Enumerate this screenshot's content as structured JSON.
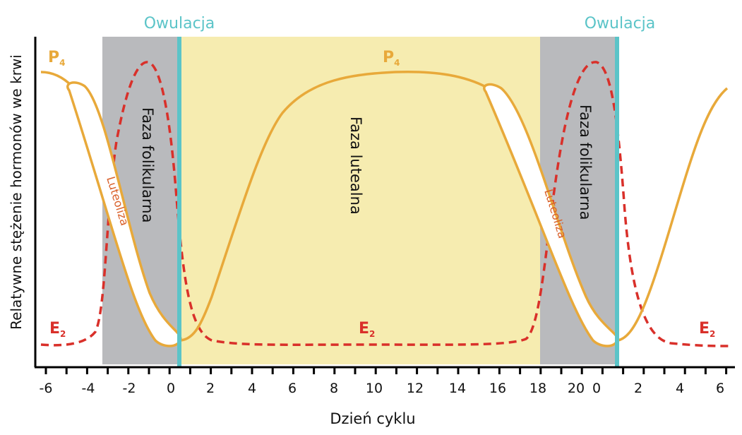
{
  "title_labels": {
    "ovulation_left": "Owulacja",
    "ovulation_right": "Owulacja"
  },
  "phases": {
    "follicular_left": "Faza folikularna",
    "luteal": "Faza lutealna",
    "follicular_right": "Faza folikularna"
  },
  "events": {
    "luteolysis_left": "Luteoliza",
    "luteolysis_right": "Luteoliza"
  },
  "hormones": {
    "p4": {
      "label": "P",
      "sub": "4",
      "color": "#e8a93a"
    },
    "e2": {
      "label": "E",
      "sub": "2",
      "color": "#d9302a"
    }
  },
  "axes": {
    "ylabel": "Relatywne stężenie hormonów we krwi",
    "xlabel": "Dzień cyklu",
    "xticks": [
      "-6",
      "-4",
      "-2",
      "0",
      "2",
      "4",
      "6",
      "8",
      "10",
      "12",
      "14",
      "16",
      "18",
      "20",
      "0",
      "2",
      "4",
      "6"
    ]
  },
  "colors": {
    "follicular": "#b9babd",
    "luteal": "#f6ecb0",
    "ovulation": "#5bc4c8",
    "axis": "#000000"
  }
}
